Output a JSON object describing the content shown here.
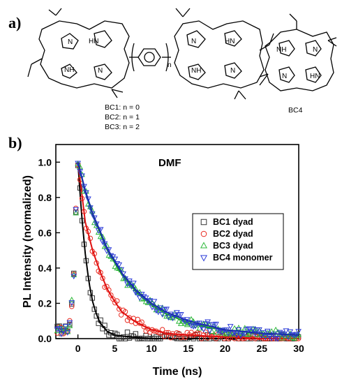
{
  "panel_a": {
    "label": "a)",
    "series_labels": [
      "BC1: n = 0",
      "BC2: n = 1",
      "BC3: n = 2"
    ],
    "monomer_label": "BC4",
    "repeat_subscript": "n",
    "atoms": {
      "nh": "HN",
      "hn": "NH",
      "n": "N"
    }
  },
  "panel_b": {
    "label": "b)"
  },
  "chart_data": {
    "type": "scatter",
    "xlabel": "Time (ns)",
    "ylabel": "PL Intensity (normalized)",
    "annotation": "DMF",
    "xlim": [
      -3,
      30
    ],
    "ylim": [
      0,
      1.1
    ],
    "xticks": [
      "0",
      "5",
      "10",
      "15",
      "20",
      "25",
      "30"
    ],
    "yticks": [
      "0.0",
      "0.2",
      "0.4",
      "0.6",
      "0.8",
      "1.0"
    ],
    "legend_position": "center-right",
    "series": [
      {
        "name": "BC1 dyad",
        "marker": "square",
        "color": "#333333",
        "fit_color": "#000000",
        "x": [
          -1.5,
          -1.0,
          -0.5,
          -0.2,
          0.0,
          0.5,
          1.0,
          1.5,
          2.0,
          2.5,
          3.0,
          4.0,
          5.0,
          7.0,
          10.0,
          15.0,
          20.0,
          25.0,
          30.0
        ],
        "y": [
          0.05,
          0.1,
          0.4,
          0.85,
          1.0,
          0.7,
          0.48,
          0.32,
          0.21,
          0.14,
          0.09,
          0.04,
          0.02,
          0.01,
          0.0,
          0.0,
          0.0,
          0.0,
          0.0
        ]
      },
      {
        "name": "BC2 dyad",
        "marker": "circle",
        "color": "#e8281e",
        "fit_color": "#e01010",
        "x": [
          -1.5,
          -1.0,
          -0.5,
          -0.2,
          0.0,
          1.0,
          2.0,
          3.0,
          4.0,
          5.0,
          6.0,
          8.0,
          10.0,
          12.0,
          15.0,
          20.0,
          25.0,
          30.0
        ],
        "y": [
          0.05,
          0.1,
          0.4,
          0.85,
          1.0,
          0.66,
          0.5,
          0.38,
          0.28,
          0.21,
          0.15,
          0.09,
          0.05,
          0.03,
          0.02,
          0.01,
          0.0,
          0.0
        ]
      },
      {
        "name": "BC3 dyad",
        "marker": "triangle-up",
        "color": "#2db83a",
        "fit_color": "#1a9c2a",
        "x": [
          -1.5,
          -1.0,
          -0.5,
          -0.2,
          0.0,
          1.0,
          2.0,
          4.0,
          6.0,
          8.0,
          10.0,
          12.0,
          15.0,
          18.0,
          20.0,
          25.0,
          30.0
        ],
        "y": [
          0.05,
          0.1,
          0.4,
          0.85,
          1.0,
          0.83,
          0.7,
          0.5,
          0.36,
          0.26,
          0.19,
          0.14,
          0.09,
          0.06,
          0.05,
          0.03,
          0.02
        ]
      },
      {
        "name": "BC4 monomer",
        "marker": "triangle-down",
        "color": "#2a3ad8",
        "fit_color": "#1a2ab0",
        "x": [
          -1.5,
          -1.0,
          -0.5,
          -0.2,
          0.0,
          1.0,
          2.0,
          4.0,
          6.0,
          8.0,
          10.0,
          12.0,
          15.0,
          18.0,
          20.0,
          25.0,
          30.0
        ],
        "y": [
          0.05,
          0.1,
          0.4,
          0.85,
          1.0,
          0.84,
          0.71,
          0.51,
          0.37,
          0.27,
          0.2,
          0.15,
          0.1,
          0.07,
          0.05,
          0.03,
          0.02
        ]
      }
    ]
  }
}
